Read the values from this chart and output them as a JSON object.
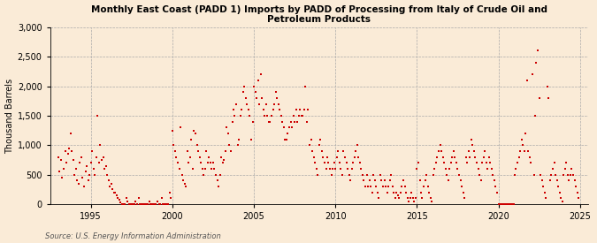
{
  "title": "Monthly East Coast (PADD 1) Imports by PADD of Processing from Italy of Crude Oil and\nPetroleum Products",
  "ylabel": "Thousand Barrels",
  "source": "Source: U.S. Energy Information Administration",
  "background_color": "#faebd7",
  "dot_color": "#cc0000",
  "xlim": [
    1992.5,
    2025.5
  ],
  "ylim": [
    0,
    3000
  ],
  "yticks": [
    0,
    500,
    1000,
    1500,
    2000,
    2500,
    3000
  ],
  "xticks": [
    1995,
    2000,
    2005,
    2010,
    2015,
    2020,
    2025
  ],
  "scatter_x": [
    1993.0,
    1993.08,
    1993.17,
    1993.25,
    1993.33,
    1993.42,
    1993.5,
    1993.58,
    1993.67,
    1993.75,
    1993.83,
    1993.92,
    1994.0,
    1994.08,
    1994.17,
    1994.25,
    1994.33,
    1994.42,
    1994.5,
    1994.58,
    1994.67,
    1994.75,
    1994.83,
    1994.92,
    1995.0,
    1995.08,
    1995.17,
    1995.25,
    1995.33,
    1995.42,
    1995.5,
    1995.58,
    1995.67,
    1995.75,
    1995.83,
    1995.92,
    1996.0,
    1996.08,
    1996.17,
    1996.25,
    1996.33,
    1996.42,
    1996.5,
    1996.58,
    1996.67,
    1996.75,
    1996.83,
    1996.92,
    1997.0,
    1997.08,
    1997.17,
    1997.25,
    1997.33,
    1997.42,
    1997.5,
    1997.58,
    1997.67,
    1997.75,
    1997.83,
    1997.92,
    1998.0,
    1998.08,
    1998.17,
    1998.25,
    1998.33,
    1998.42,
    1998.5,
    1998.58,
    1998.67,
    1998.75,
    1998.83,
    1998.92,
    1999.0,
    1999.08,
    1999.17,
    1999.25,
    1999.33,
    1999.42,
    1999.5,
    1999.58,
    1999.67,
    1999.75,
    1999.83,
    1999.92,
    2000.0,
    2000.08,
    2000.17,
    2000.25,
    2000.33,
    2000.42,
    2000.5,
    2000.58,
    2000.67,
    2000.75,
    2000.83,
    2000.92,
    2001.0,
    2001.08,
    2001.17,
    2001.25,
    2001.33,
    2001.42,
    2001.5,
    2001.58,
    2001.67,
    2001.75,
    2001.83,
    2001.92,
    2002.0,
    2002.08,
    2002.17,
    2002.25,
    2002.33,
    2002.42,
    2002.5,
    2002.58,
    2002.67,
    2002.75,
    2002.83,
    2002.92,
    2003.0,
    2003.08,
    2003.17,
    2003.25,
    2003.33,
    2003.42,
    2003.5,
    2003.58,
    2003.67,
    2003.75,
    2003.83,
    2003.92,
    2004.0,
    2004.08,
    2004.17,
    2004.25,
    2004.33,
    2004.42,
    2004.5,
    2004.58,
    2004.67,
    2004.75,
    2004.83,
    2004.92,
    2005.0,
    2005.08,
    2005.17,
    2005.25,
    2005.33,
    2005.42,
    2005.5,
    2005.58,
    2005.67,
    2005.75,
    2005.83,
    2005.92,
    2006.0,
    2006.08,
    2006.17,
    2006.25,
    2006.33,
    2006.42,
    2006.5,
    2006.58,
    2006.67,
    2006.75,
    2006.83,
    2006.92,
    2007.0,
    2007.08,
    2007.17,
    2007.25,
    2007.33,
    2007.42,
    2007.5,
    2007.58,
    2007.67,
    2007.75,
    2007.83,
    2007.92,
    2008.0,
    2008.08,
    2008.17,
    2008.25,
    2008.33,
    2008.42,
    2008.5,
    2008.58,
    2008.67,
    2008.75,
    2008.83,
    2008.92,
    2009.0,
    2009.08,
    2009.17,
    2009.25,
    2009.33,
    2009.42,
    2009.5,
    2009.58,
    2009.67,
    2009.75,
    2009.83,
    2009.92,
    2010.0,
    2010.08,
    2010.17,
    2010.25,
    2010.33,
    2010.42,
    2010.5,
    2010.58,
    2010.67,
    2010.75,
    2010.83,
    2010.92,
    2011.0,
    2011.08,
    2011.17,
    2011.25,
    2011.33,
    2011.42,
    2011.5,
    2011.58,
    2011.67,
    2011.75,
    2011.83,
    2011.92,
    2012.0,
    2012.08,
    2012.17,
    2012.25,
    2012.33,
    2012.42,
    2012.5,
    2012.58,
    2012.67,
    2012.75,
    2012.83,
    2012.92,
    2013.0,
    2013.08,
    2013.17,
    2013.25,
    2013.33,
    2013.42,
    2013.5,
    2013.58,
    2013.67,
    2013.75,
    2013.83,
    2013.92,
    2014.0,
    2014.08,
    2014.17,
    2014.25,
    2014.33,
    2014.42,
    2014.5,
    2014.58,
    2014.67,
    2014.75,
    2014.83,
    2014.92,
    2015.0,
    2015.08,
    2015.17,
    2015.25,
    2015.33,
    2015.42,
    2015.5,
    2015.58,
    2015.67,
    2015.75,
    2015.83,
    2015.92,
    2016.0,
    2016.08,
    2016.17,
    2016.25,
    2016.33,
    2016.42,
    2016.5,
    2016.58,
    2016.67,
    2016.75,
    2016.83,
    2016.92,
    2017.0,
    2017.08,
    2017.17,
    2017.25,
    2017.33,
    2017.42,
    2017.5,
    2017.58,
    2017.67,
    2017.75,
    2017.83,
    2017.92,
    2018.0,
    2018.08,
    2018.17,
    2018.25,
    2018.33,
    2018.42,
    2018.5,
    2018.58,
    2018.67,
    2018.75,
    2018.83,
    2018.92,
    2019.0,
    2019.08,
    2019.17,
    2019.25,
    2019.33,
    2019.42,
    2019.5,
    2019.58,
    2019.67,
    2019.75,
    2019.83,
    2019.92,
    2020.0,
    2020.08,
    2020.17,
    2020.25,
    2020.33,
    2020.42,
    2020.5,
    2020.58,
    2020.67,
    2020.75,
    2020.83,
    2020.92,
    2021.0,
    2021.08,
    2021.17,
    2021.25,
    2021.33,
    2021.42,
    2021.5,
    2021.58,
    2021.67,
    2021.75,
    2021.83,
    2021.92,
    2022.0,
    2022.08,
    2022.17,
    2022.25,
    2022.33,
    2022.42,
    2022.5,
    2022.58,
    2022.67,
    2022.75,
    2022.83,
    2022.92,
    2023.0,
    2023.08,
    2023.17,
    2023.25,
    2023.33,
    2023.42,
    2023.5,
    2023.58,
    2023.67,
    2023.75,
    2023.83,
    2023.92,
    2024.0,
    2024.08,
    2024.17,
    2024.25,
    2024.33,
    2024.42,
    2024.5,
    2024.58,
    2024.67,
    2024.75,
    2024.83,
    2024.92
  ],
  "scatter_y": [
    800,
    550,
    750,
    450,
    600,
    900,
    700,
    850,
    950,
    1200,
    900,
    750,
    500,
    600,
    400,
    350,
    700,
    800,
    450,
    300,
    550,
    650,
    400,
    500,
    700,
    900,
    600,
    500,
    800,
    1500,
    700,
    1000,
    750,
    800,
    600,
    650,
    500,
    400,
    300,
    350,
    250,
    200,
    200,
    150,
    100,
    80,
    30,
    0,
    0,
    0,
    100,
    50,
    0,
    0,
    0,
    0,
    0,
    50,
    0,
    100,
    0,
    0,
    0,
    0,
    0,
    0,
    0,
    50,
    0,
    0,
    0,
    0,
    0,
    50,
    0,
    0,
    100,
    0,
    0,
    0,
    0,
    0,
    200,
    100,
    1250,
    1000,
    900,
    800,
    700,
    600,
    1300,
    500,
    400,
    350,
    300,
    900,
    700,
    800,
    1100,
    600,
    1250,
    1200,
    1000,
    900,
    800,
    700,
    600,
    500,
    600,
    900,
    700,
    800,
    700,
    600,
    700,
    600,
    500,
    400,
    300,
    500,
    800,
    700,
    750,
    900,
    1300,
    1200,
    1000,
    900,
    1400,
    1600,
    1500,
    1700,
    1000,
    1100,
    1500,
    1600,
    1900,
    2000,
    1800,
    1700,
    1600,
    1500,
    1100,
    1400,
    2000,
    1900,
    1800,
    2100,
    1700,
    2200,
    1800,
    1600,
    1500,
    1700,
    1500,
    1400,
    1400,
    1500,
    1600,
    1700,
    1900,
    1800,
    1700,
    1600,
    1500,
    1400,
    1300,
    1100,
    1100,
    1200,
    1300,
    1400,
    1300,
    1500,
    1400,
    1600,
    1400,
    1500,
    1600,
    1500,
    1500,
    1600,
    2000,
    1400,
    1600,
    1000,
    1100,
    900,
    800,
    700,
    600,
    500,
    1000,
    1100,
    900,
    800,
    700,
    600,
    800,
    700,
    600,
    500,
    600,
    700,
    600,
    800,
    900,
    700,
    600,
    500,
    900,
    800,
    700,
    600,
    500,
    400,
    600,
    700,
    800,
    900,
    1000,
    800,
    700,
    600,
    500,
    400,
    300,
    500,
    300,
    400,
    300,
    200,
    500,
    400,
    300,
    200,
    100,
    500,
    400,
    300,
    400,
    300,
    200,
    300,
    400,
    500,
    300,
    200,
    100,
    200,
    150,
    100,
    200,
    300,
    400,
    300,
    200,
    100,
    50,
    100,
    200,
    100,
    50,
    100,
    600,
    700,
    400,
    200,
    100,
    300,
    400,
    500,
    300,
    200,
    100,
    50,
    500,
    600,
    700,
    800,
    900,
    1000,
    900,
    800,
    700,
    600,
    500,
    400,
    600,
    700,
    800,
    900,
    800,
    700,
    600,
    500,
    400,
    300,
    200,
    100,
    800,
    700,
    900,
    800,
    1100,
    1000,
    900,
    800,
    700,
    600,
    500,
    400,
    700,
    800,
    900,
    700,
    600,
    800,
    700,
    600,
    500,
    400,
    300,
    200,
    0,
    0,
    0,
    0,
    0,
    0,
    0,
    0,
    0,
    0,
    0,
    0,
    500,
    600,
    700,
    800,
    900,
    1100,
    1000,
    900,
    1200,
    2100,
    900,
    800,
    700,
    2200,
    500,
    1500,
    2400,
    2600,
    1800,
    500,
    400,
    300,
    200,
    100,
    2000,
    1800,
    400,
    500,
    600,
    700,
    500,
    400,
    300,
    200,
    100,
    50,
    500,
    600,
    700,
    500,
    400,
    500,
    600,
    500,
    400,
    300,
    200,
    100
  ]
}
